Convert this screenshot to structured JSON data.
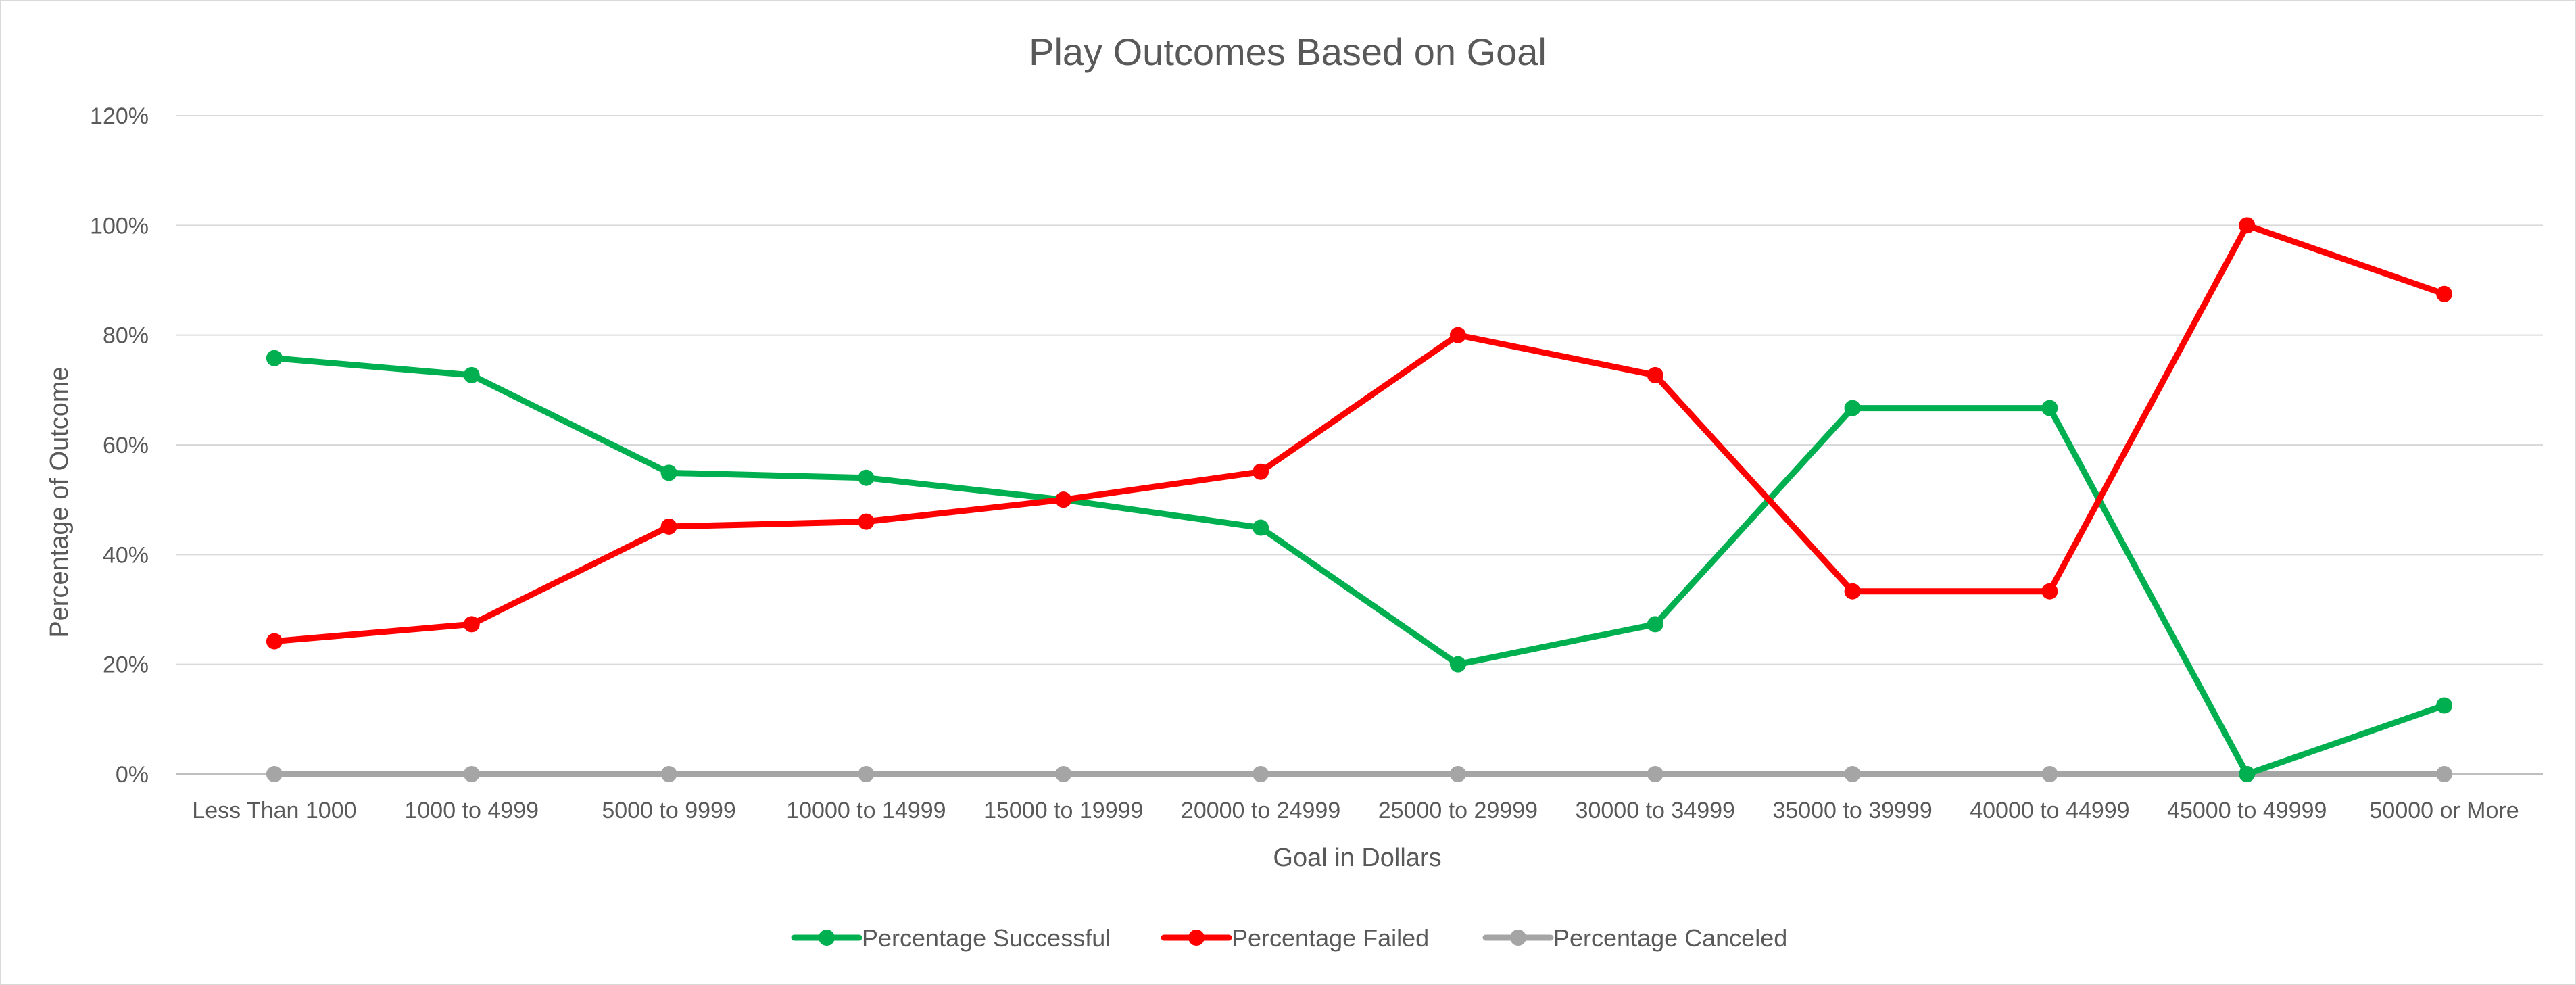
{
  "chart_data": {
    "type": "line",
    "title": "Play Outcomes Based on Goal",
    "xlabel": "Goal in Dollars",
    "ylabel": "Percentage of Outcome",
    "ylim": [
      0,
      120
    ],
    "yticks": [
      "0%",
      "20%",
      "40%",
      "60%",
      "80%",
      "100%",
      "120%"
    ],
    "ytick_values": [
      0,
      20,
      40,
      60,
      80,
      100,
      120
    ],
    "grid": "horizontal",
    "legend": "bottom",
    "categories": [
      "Less Than 1000",
      "1000 to 4999",
      "5000 to 9999",
      "10000 to 14999",
      "15000 to 19999",
      "20000 to 24999",
      "25000 to 29999",
      "30000 to 34999",
      "35000 to 39999",
      "40000 to 44999",
      "45000 to 49999",
      "50000 or More"
    ],
    "series": [
      {
        "name": "Percentage Successful",
        "color": "#00b050",
        "values": [
          75.8,
          72.7,
          54.9,
          54.0,
          50.0,
          44.9,
          20.0,
          27.3,
          66.7,
          66.7,
          0.0,
          12.5
        ]
      },
      {
        "name": "Percentage Failed",
        "color": "#ff0000",
        "values": [
          24.2,
          27.3,
          45.1,
          46.0,
          50.0,
          55.1,
          80.0,
          72.7,
          33.3,
          33.3,
          100.0,
          87.5
        ]
      },
      {
        "name": "Percentage Canceled",
        "color": "#a5a5a5",
        "values": [
          0,
          0,
          0,
          0,
          0,
          0,
          0,
          0,
          0,
          0,
          0,
          0
        ]
      }
    ]
  }
}
